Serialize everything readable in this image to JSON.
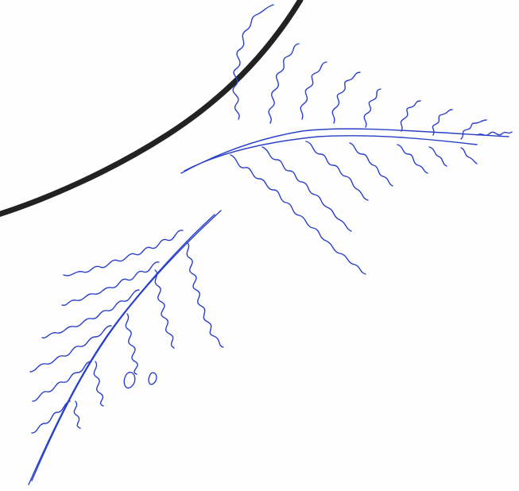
{
  "image": {
    "background_color": "#fefefe",
    "arc_color": "#222222",
    "ink_color": "#2a40c8",
    "ink_color_light": "#5a74d8",
    "subjects": [
      "curved-black-line",
      "blue-scribble-fern-upper",
      "blue-scribble-fern-lower"
    ]
  }
}
